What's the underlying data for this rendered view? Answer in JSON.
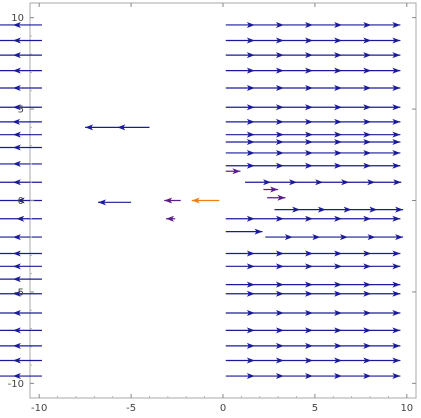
{
  "chart_data": {
    "type": "vector-field",
    "title": "",
    "xlabel": "",
    "ylabel": "",
    "xlim": [
      -10.5,
      10.5
    ],
    "ylim": [
      -10.8,
      10.8
    ],
    "xticks": [
      -10,
      -5,
      0,
      5,
      10
    ],
    "xtick_labels": [
      "-10",
      "-5",
      "0",
      "5",
      "10"
    ],
    "yticks": [
      -10,
      -5,
      0,
      5,
      10
    ],
    "ytick_labels": [
      "-10",
      "-5",
      "0",
      "5",
      "10"
    ],
    "grid": false,
    "colors": {
      "vector_long": "#1a1a9a",
      "vector_mid": "#5b1d8c",
      "vector_short": "#f07f10",
      "frame": "#aaaaaa",
      "tick_label": "#444444"
    },
    "description": "Horizontal vector field: arrows point left for x < 0 and right for x > 0; magnitude is large everywhere except near the origin (center arrow is short and orange).",
    "vectors": [
      {
        "x": -9.85,
        "y": 9.6,
        "u": -9.5,
        "v": 0
      },
      {
        "x": 0.15,
        "y": 9.6,
        "u": 9.5,
        "v": 0
      },
      {
        "x": -9.85,
        "y": 8.75,
        "u": -9.5,
        "v": 0
      },
      {
        "x": 0.15,
        "y": 8.75,
        "u": 9.5,
        "v": 0
      },
      {
        "x": -9.85,
        "y": 7.95,
        "u": -9.5,
        "v": 0
      },
      {
        "x": 0.15,
        "y": 7.95,
        "u": 9.5,
        "v": 0
      },
      {
        "x": -9.85,
        "y": 7.1,
        "u": -9.5,
        "v": 0
      },
      {
        "x": 0.15,
        "y": 7.1,
        "u": 9.5,
        "v": 0
      },
      {
        "x": -9.85,
        "y": 6.15,
        "u": -9.5,
        "v": 0
      },
      {
        "x": 0.15,
        "y": 6.15,
        "u": 9.5,
        "v": 0
      },
      {
        "x": -9.85,
        "y": 5.1,
        "u": -9.5,
        "v": 0
      },
      {
        "x": 0.15,
        "y": 5.1,
        "u": 9.5,
        "v": 0
      },
      {
        "x": -9.85,
        "y": 4.3,
        "u": -6.5,
        "v": 0
      },
      {
        "x": 0.15,
        "y": 4.3,
        "u": 9.5,
        "v": 0
      },
      {
        "x": -9.85,
        "y": 3.6,
        "u": -9.5,
        "v": 0
      },
      {
        "x": -4.0,
        "y": 4.0,
        "u": -3.5,
        "v": 0
      },
      {
        "x": 0.15,
        "y": 3.6,
        "u": 9.5,
        "v": 0
      },
      {
        "x": -9.85,
        "y": 2.9,
        "u": -9.5,
        "v": 0
      },
      {
        "x": 0.15,
        "y": 3.2,
        "u": 9.5,
        "v": 0
      },
      {
        "x": 0.15,
        "y": 2.6,
        "u": 9.5,
        "v": 0
      },
      {
        "x": -9.85,
        "y": 2.0,
        "u": -9.5,
        "v": 0
      },
      {
        "x": 0.15,
        "y": 1.9,
        "u": 9.5,
        "v": 0
      },
      {
        "x": -9.85,
        "y": 1.0,
        "u": -9.5,
        "v": 0
      },
      {
        "x": 0.15,
        "y": 1.6,
        "u": 0.8,
        "v": 0
      },
      {
        "x": 1.2,
        "y": 1.0,
        "u": 8.5,
        "v": 0
      },
      {
        "x": -9.85,
        "y": 0.0,
        "u": -5.5,
        "v": 0
      },
      {
        "x": -5.0,
        "y": -0.1,
        "u": -1.8,
        "v": 0
      },
      {
        "x": -2.3,
        "y": 0.0,
        "u": -0.9,
        "v": 0
      },
      {
        "x": -0.2,
        "y": 0.0,
        "u": -1.5,
        "v": 0,
        "color": "vector_short"
      },
      {
        "x": 2.2,
        "y": 0.6,
        "u": 0.8,
        "v": 0
      },
      {
        "x": 2.4,
        "y": 0.15,
        "u": 1.0,
        "v": 0
      },
      {
        "x": 2.8,
        "y": -0.5,
        "u": 7.0,
        "v": 0
      },
      {
        "x": -9.85,
        "y": -1.0,
        "u": -7.0,
        "v": 0
      },
      {
        "x": -2.6,
        "y": -1.0,
        "u": -0.5,
        "v": 0
      },
      {
        "x": 0.15,
        "y": -1.0,
        "u": 9.5,
        "v": 0
      },
      {
        "x": -9.85,
        "y": -2.0,
        "u": -9.5,
        "v": 0
      },
      {
        "x": 0.15,
        "y": -1.7,
        "u": 2.0,
        "v": 0
      },
      {
        "x": 2.3,
        "y": -2.0,
        "u": 7.5,
        "v": 0
      },
      {
        "x": -9.85,
        "y": -2.9,
        "u": -9.5,
        "v": 0
      },
      {
        "x": 0.15,
        "y": -2.9,
        "u": 9.5,
        "v": 0
      },
      {
        "x": -9.85,
        "y": -3.6,
        "u": -9.5,
        "v": 0
      },
      {
        "x": 0.15,
        "y": -3.6,
        "u": 9.5,
        "v": 0
      },
      {
        "x": -9.85,
        "y": -4.3,
        "u": -9.5,
        "v": 0
      },
      {
        "x": 0.15,
        "y": -4.6,
        "u": 9.5,
        "v": 0
      },
      {
        "x": -9.85,
        "y": -5.1,
        "u": -9.5,
        "v": 0
      },
      {
        "x": 0.15,
        "y": -5.1,
        "u": 9.5,
        "v": 0
      },
      {
        "x": -9.85,
        "y": -6.15,
        "u": -9.5,
        "v": 0
      },
      {
        "x": 0.15,
        "y": -6.15,
        "u": 9.5,
        "v": 0
      },
      {
        "x": -9.85,
        "y": -7.1,
        "u": -9.5,
        "v": 0
      },
      {
        "x": 0.15,
        "y": -7.1,
        "u": 9.5,
        "v": 0
      },
      {
        "x": -9.85,
        "y": -7.95,
        "u": -9.5,
        "v": 0
      },
      {
        "x": 0.15,
        "y": -7.95,
        "u": 9.5,
        "v": 0
      },
      {
        "x": -9.85,
        "y": -8.75,
        "u": -9.5,
        "v": 0
      },
      {
        "x": 0.15,
        "y": -8.75,
        "u": 9.5,
        "v": 0
      },
      {
        "x": -9.85,
        "y": -9.6,
        "u": -9.5,
        "v": 0
      },
      {
        "x": 0.15,
        "y": -9.6,
        "u": 9.5,
        "v": 0
      }
    ]
  }
}
